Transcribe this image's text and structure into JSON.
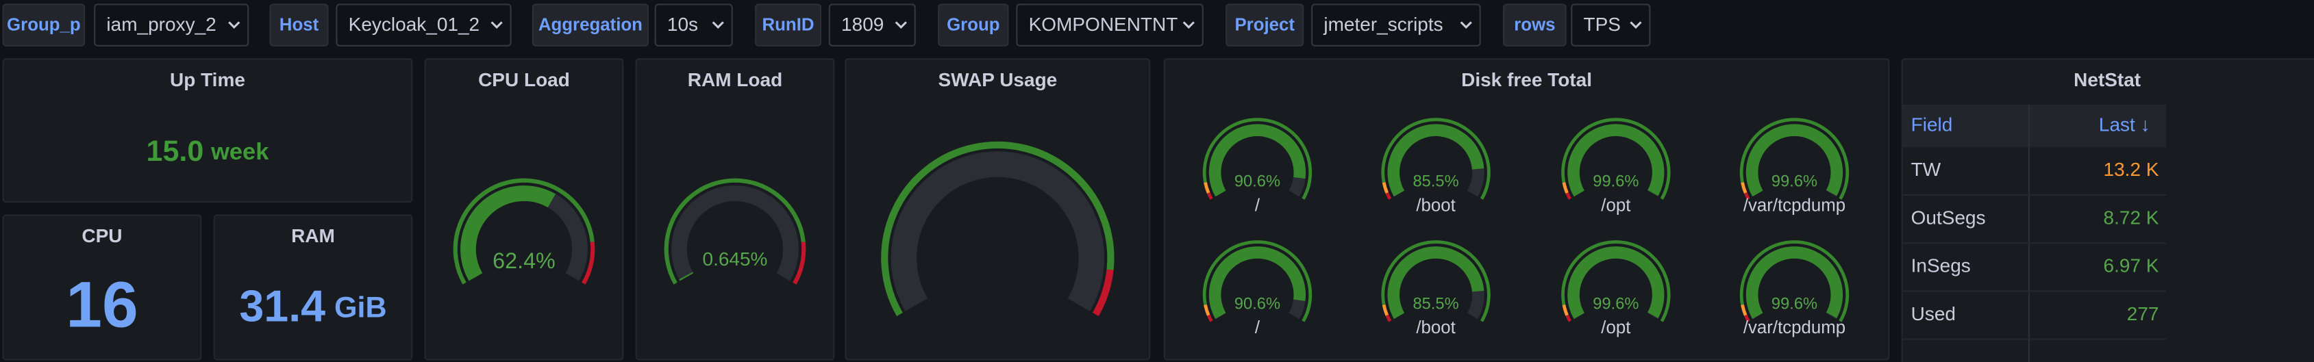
{
  "variables": [
    {
      "label": "Group_p",
      "value": "iam_proxy_2"
    },
    {
      "label": "Host",
      "value": "Keycloak_01_2"
    },
    {
      "label": "Aggregation",
      "value": "10s"
    },
    {
      "label": "RunID",
      "value": "1809"
    },
    {
      "label": "Group",
      "value": "KOMPONENTNT"
    },
    {
      "label": "Project",
      "value": "jmeter_scripts"
    },
    {
      "label": "rows",
      "value": "TPS"
    }
  ],
  "uptime": {
    "title": "Up Time",
    "value": "15.0",
    "unit": "week",
    "color": "#3f9a37"
  },
  "stats": [
    {
      "title": "CPU",
      "value": "16",
      "color": "#73a3f5"
    },
    {
      "title": "RAM",
      "value": "31.4",
      "unit": "GiB",
      "color": "#73a3f5"
    }
  ],
  "gauges": [
    {
      "title": "CPU Load",
      "max": 100,
      "thresholds": [
        {
          "value": 0,
          "color": "#37872d"
        },
        {
          "value": 85,
          "color": "#c4162a"
        }
      ],
      "items": [
        {
          "value": 62.4,
          "value_label": "62.4%"
        }
      ]
    },
    {
      "title": "RAM Load",
      "max": 100,
      "thresholds": [
        {
          "value": 0,
          "color": "#37872d"
        },
        {
          "value": 85,
          "color": "#c4162a"
        }
      ],
      "items": [
        {
          "value": 0.645,
          "value_label": "0.645%"
        }
      ]
    },
    {
      "title": "SWAP Usage",
      "max": 100,
      "thresholds": [
        {
          "value": 0,
          "color": "#37872d"
        },
        {
          "value": 90,
          "color": "#c4162a"
        }
      ]
    }
  ],
  "disk": {
    "title": "Disk free Total",
    "max": 100,
    "thresholds": [
      {
        "value": 0,
        "color": "#c4162a"
      },
      {
        "value": 3,
        "color": "#ff9830"
      },
      {
        "value": 8,
        "color": "#37872d"
      }
    ],
    "items": [
      {
        "name": "/",
        "value": 90.6,
        "value_label": "90.6%"
      },
      {
        "name": "/boot",
        "value": 85.5,
        "value_label": "85.5%"
      },
      {
        "name": "/opt",
        "value": 99.6,
        "value_label": "99.6%"
      },
      {
        "name": "/var/tcpdump",
        "value": 99.6,
        "value_label": "99.6%"
      },
      {
        "name": "/",
        "value": 90.6,
        "value_label": "90.6%"
      },
      {
        "name": "/boot",
        "value": 85.5,
        "value_label": "85.5%"
      },
      {
        "name": "/opt",
        "value": 99.6,
        "value_label": "99.6%"
      },
      {
        "name": "/var/tcpdump",
        "value": 99.6,
        "value_label": "99.6%"
      }
    ]
  },
  "netstat": {
    "title": "NetStat",
    "columns": [
      "Field",
      "Last ↓"
    ],
    "rows": [
      [
        "TW",
        "13.2 K"
      ],
      [
        "OutSegs",
        "8.72 K"
      ],
      [
        "InSegs",
        "6.97 K"
      ],
      [
        "Used",
        "277"
      ]
    ],
    "colors": [
      "#ff9830",
      "#56a64b",
      "#56a64b",
      "#56a64b"
    ]
  }
}
